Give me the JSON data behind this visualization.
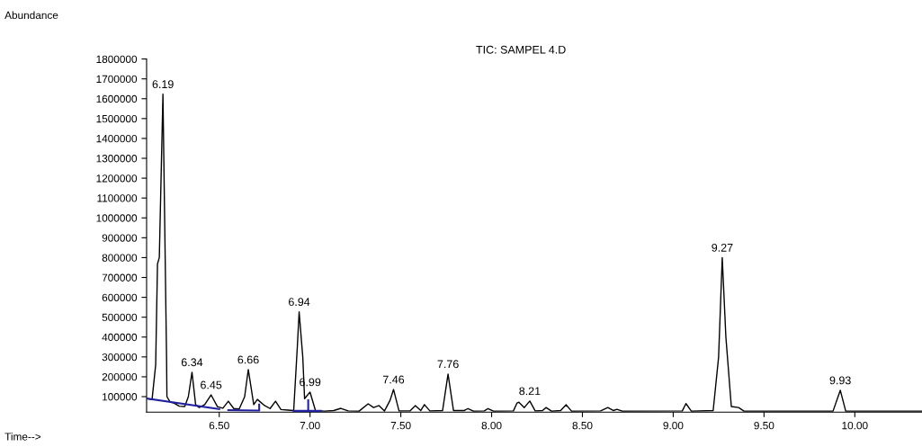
{
  "chart_data": {
    "type": "line",
    "title": "TIC: SAMPEL 4.D",
    "xlim": [
      6.1,
      10.37
    ],
    "ylim": [
      22000,
      1800000
    ],
    "xticks": [
      {
        "value": 6.5,
        "label": "6.50"
      },
      {
        "value": 7.0,
        "label": "7.00"
      },
      {
        "value": 7.5,
        "label": "7.50"
      },
      {
        "value": 8.0,
        "label": "8.00"
      },
      {
        "value": 8.5,
        "label": "8.50"
      },
      {
        "value": 9.0,
        "label": "9.00"
      },
      {
        "value": 9.5,
        "label": "9.50"
      },
      {
        "value": 10.0,
        "label": "10.00"
      }
    ],
    "yticks": [
      100000,
      200000,
      300000,
      400000,
      500000,
      600000,
      700000,
      800000,
      900000,
      1000000,
      1100000,
      1200000,
      1300000,
      1400000,
      1500000,
      1600000,
      1700000,
      1800000
    ],
    "grid": false,
    "legend": false,
    "marker": "none",
    "line_style": "solid",
    "series": [
      {
        "color": "#000000",
        "x": [
          6.1,
          6.13,
          6.15,
          6.16,
          6.17,
          6.19,
          6.21,
          6.212,
          6.23,
          6.25,
          6.28,
          6.31,
          6.33,
          6.35,
          6.37,
          6.39,
          6.42,
          6.455,
          6.49,
          6.52,
          6.55,
          6.58,
          6.61,
          6.64,
          6.66,
          6.69,
          6.71,
          6.75,
          6.78,
          6.81,
          6.84,
          6.88,
          6.91,
          6.93,
          6.94,
          6.96,
          6.97,
          7.0,
          7.03,
          7.08,
          7.13,
          7.17,
          7.21,
          7.27,
          7.32,
          7.35,
          7.38,
          7.41,
          7.44,
          7.46,
          7.49,
          7.55,
          7.58,
          7.61,
          7.63,
          7.66,
          7.73,
          7.76,
          7.79,
          7.85,
          7.87,
          7.9,
          7.96,
          7.98,
          8.01,
          8.12,
          8.14,
          8.15,
          8.18,
          8.21,
          8.24,
          8.28,
          8.3,
          8.33,
          8.38,
          8.41,
          8.44,
          8.6,
          8.64,
          8.67,
          8.69,
          8.72,
          9.05,
          9.07,
          9.1,
          9.22,
          9.25,
          9.27,
          9.29,
          9.32,
          9.36,
          9.39,
          9.88,
          9.92,
          9.95,
          10.37
        ],
        "values": [
          91000,
          85000,
          260000,
          768000,
          800000,
          1623000,
          290000,
          100000,
          72000,
          68000,
          52000,
          50000,
          100000,
          223000,
          60000,
          45000,
          60000,
          109000,
          50000,
          42000,
          77000,
          40000,
          38000,
          100000,
          236000,
          60000,
          86000,
          55000,
          40000,
          77000,
          35000,
          32000,
          30000,
          350000,
          527000,
          300000,
          90000,
          123000,
          30000,
          27000,
          30000,
          41000,
          28000,
          27000,
          64000,
          45000,
          55000,
          28000,
          80000,
          136000,
          28000,
          28000,
          55000,
          30000,
          60000,
          28000,
          30000,
          214000,
          30000,
          30000,
          40000,
          27000,
          28000,
          40000,
          27000,
          28000,
          68000,
          72000,
          45000,
          78000,
          28000,
          30000,
          45000,
          27000,
          30000,
          59000,
          27000,
          28000,
          45000,
          30000,
          36000,
          27000,
          28000,
          65000,
          27000,
          30000,
          300000,
          800000,
          400000,
          50000,
          45000,
          27000,
          27000,
          132000,
          27000,
          27000
        ]
      },
      {
        "color": "#2020a0",
        "x": [
          6.1,
          6.5
        ],
        "values": [
          91000,
          37000
        ]
      },
      {
        "color": "#2020a0",
        "x": [
          6.55,
          6.72,
          6.72
        ],
        "values": [
          32000,
          30000,
          60000
        ]
      },
      {
        "color": "#2020a0",
        "x": [
          6.91,
          6.99,
          6.99
        ],
        "values": [
          28000,
          28000,
          82000
        ]
      },
      {
        "color": "#2020a0",
        "x": [
          6.99,
          7.06
        ],
        "values": [
          28000,
          28000
        ]
      }
    ],
    "annotations": [
      "Abundance",
      "Time-->",
      {
        "text": "6.19",
        "x": 6.19,
        "y": 1623000
      },
      {
        "text": "6.34",
        "x": 6.35,
        "y": 223000
      },
      {
        "text": "6.45",
        "x": 6.455,
        "y": 109000
      },
      {
        "text": "6.66",
        "x": 6.66,
        "y": 236000
      },
      {
        "text": "6.94",
        "x": 6.94,
        "y": 527000
      },
      {
        "text": "6.99",
        "x": 7.0,
        "y": 123000
      },
      {
        "text": "7.46",
        "x": 7.46,
        "y": 136000
      },
      {
        "text": "7.76",
        "x": 7.76,
        "y": 214000
      },
      {
        "text": "8.21",
        "x": 8.21,
        "y": 78000
      },
      {
        "text": "9.27",
        "x": 9.27,
        "y": 800000
      },
      {
        "text": "9.93",
        "x": 9.92,
        "y": 132000
      }
    ]
  }
}
